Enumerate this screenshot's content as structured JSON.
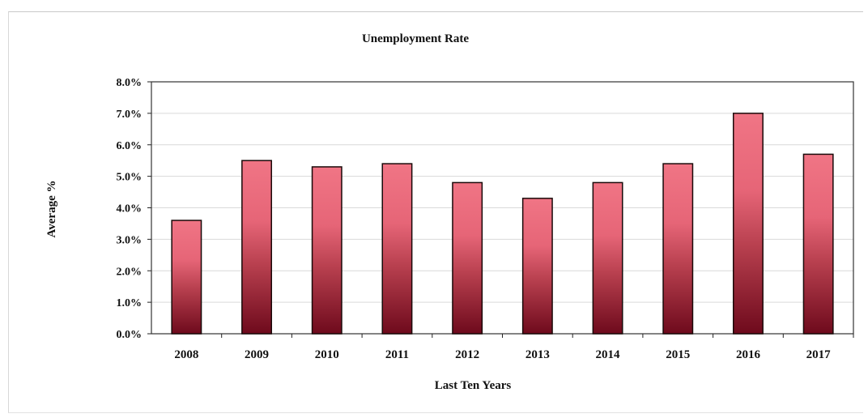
{
  "chart_data": {
    "type": "bar",
    "title": "Unemployment Rate",
    "xlabel": "Last Ten Years",
    "ylabel": "Average %",
    "categories": [
      "2008",
      "2009",
      "2010",
      "2011",
      "2012",
      "2013",
      "2014",
      "2015",
      "2016",
      "2017"
    ],
    "values": [
      3.6,
      5.5,
      5.3,
      5.4,
      4.8,
      4.3,
      4.8,
      5.4,
      7.0,
      5.7
    ],
    "ylim": [
      0,
      8
    ],
    "yticks": [
      "0.0%",
      "1.0%",
      "2.0%",
      "3.0%",
      "4.0%",
      "5.0%",
      "6.0%",
      "7.0%",
      "8.0%"
    ],
    "grid": true,
    "legend": "none",
    "colors": {
      "bar_top": "#f07585",
      "bar_mid": "#b8404f",
      "bar_bottom": "#6e0a1c",
      "bar_stroke": "#1a0a0a",
      "grid": "#d9d9d9"
    }
  }
}
